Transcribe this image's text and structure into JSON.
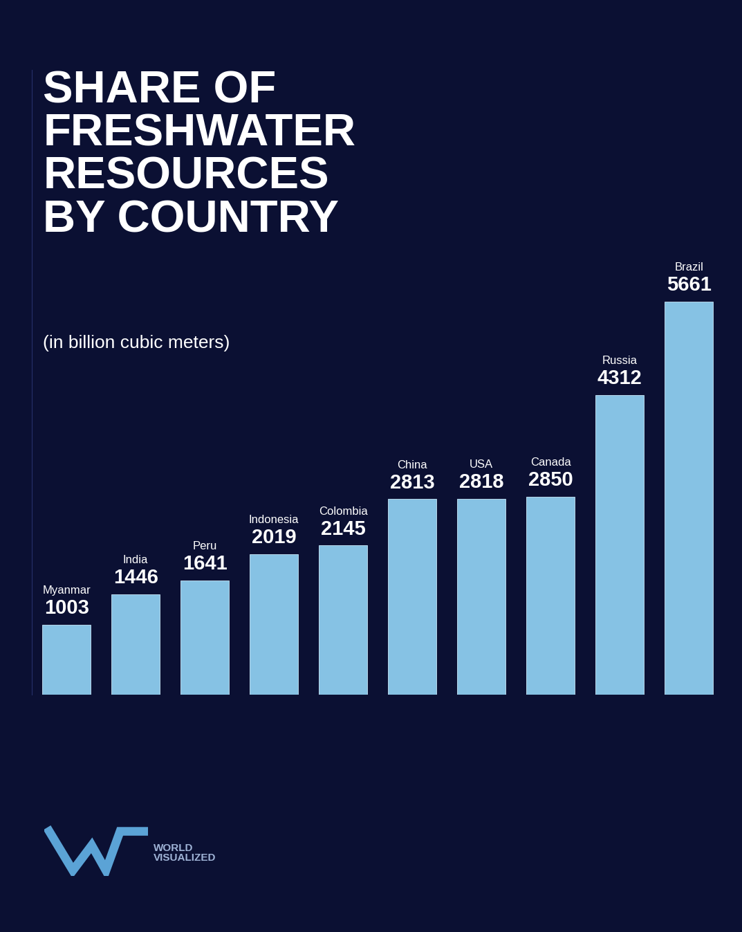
{
  "chart_data": {
    "type": "bar",
    "title": "SHARE OF\nFRESHWATER\nRESOURCES\nBY COUNTRY",
    "subtitle": "(in billion cubic meters)",
    "categories": [
      "Myanmar",
      "India",
      "Peru",
      "Indonesia",
      "Colombia",
      "China",
      "USA",
      "Canada",
      "Russia",
      "Brazil"
    ],
    "values": [
      1003,
      1446,
      1641,
      2019,
      2145,
      2813,
      2818,
      2850,
      4312,
      5661
    ],
    "color": "#86c2e4",
    "ylim": [
      0,
      9000
    ],
    "data_labels": true,
    "tick_labels": false,
    "grid": false,
    "source": "WORLD\nVISUALIZED"
  }
}
